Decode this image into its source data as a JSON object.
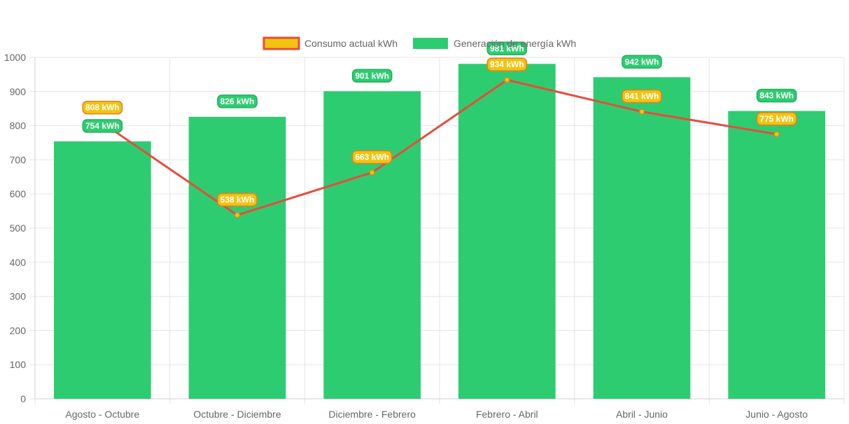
{
  "chart_data": {
    "type": "bar",
    "categories": [
      "Agosto - Octubre",
      "Octubre - Diciembre",
      "Diciembre - Febrero",
      "Febrero - Abril",
      "Abril - Junio",
      "Junio - Agosto"
    ],
    "series": [
      {
        "name": "Consumo actual kWh",
        "type": "line",
        "values": [
          808,
          538,
          663,
          934,
          841,
          775
        ],
        "labels": [
          "808 kWh",
          "538 kWh",
          "663 kWh",
          "934 kWh",
          "841 kWh",
          "775 kWh"
        ],
        "color": "#e74c3c",
        "point_color": "#f1c40f",
        "label_bg": "#f1c40f",
        "label_border": "#e67e22"
      },
      {
        "name": "Generación de energía kWh",
        "type": "bar",
        "values": [
          754,
          826,
          901,
          981,
          942,
          843
        ],
        "labels": [
          "754 kWh",
          "826 kWh",
          "901 kWh",
          "981 kWh",
          "942 kWh",
          "843 kWh"
        ],
        "color": "#2ecc71",
        "label_bg": "#2ecc71",
        "label_border": "#27ae60"
      }
    ],
    "y_ticks": [
      "0",
      "100",
      "200",
      "300",
      "400",
      "500",
      "600",
      "700",
      "800",
      "900",
      "1000"
    ],
    "ylim": [
      0,
      1000
    ],
    "grid": true,
    "legend_position": "top-center",
    "title": "",
    "xlabel": "",
    "ylabel": ""
  }
}
